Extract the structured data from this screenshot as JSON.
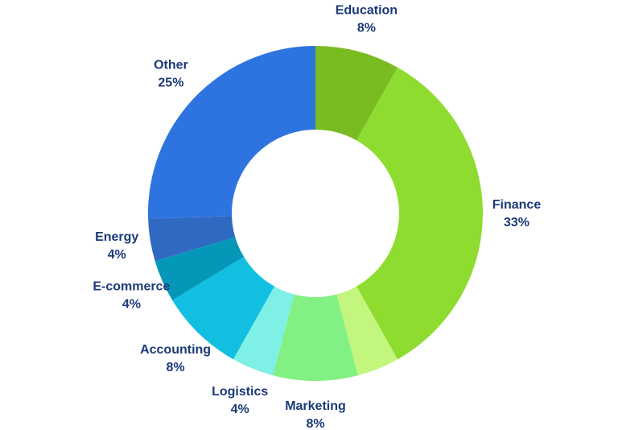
{
  "chart_data": {
    "type": "donut",
    "categories": [
      "Education",
      "Finance",
      null,
      "Marketing",
      "Logistics",
      "Accounting",
      "E-commerce",
      "Energy",
      "Other"
    ],
    "values": [
      8,
      33,
      4,
      8,
      4,
      8,
      4,
      4,
      25
    ],
    "value_labels": [
      "8%",
      "33%",
      null,
      "8%",
      "4%",
      "8%",
      "4%",
      "4%",
      "25%"
    ],
    "colors": [
      "#78bc22",
      "#8fdc30",
      "#c2f67c",
      "#82f082",
      "#7ff0e6",
      "#12bfe0",
      "#0597b8",
      "#2f69c2",
      "#2e74e0"
    ]
  }
}
